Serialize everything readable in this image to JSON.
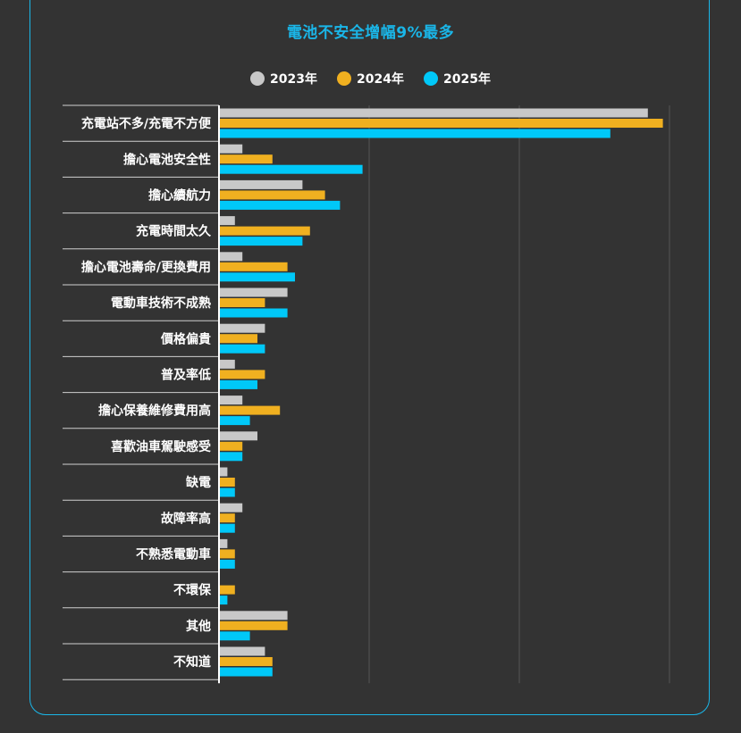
{
  "title": "電池不安全增幅9%最多",
  "colors": {
    "card_border": "#1ab6e8",
    "title": "#1ab6e8",
    "background": "#333333",
    "grid": "#555555",
    "separator": "#d0d0d0"
  },
  "chart_data": {
    "type": "bar",
    "orientation": "horizontal",
    "title": "電池不安全增幅9%最多",
    "xlabel": "",
    "ylabel": "",
    "xlim": [
      0,
      60
    ],
    "grid": true,
    "legend_position": "top-center",
    "categories": [
      "充電站不多/充電不方便",
      "擔心電池安全性",
      "擔心續航力",
      "充電時間太久",
      "擔心電池壽命/更換費用",
      "電動車技術不成熟",
      "價格偏貴",
      "普及率低",
      "擔心保養維修費用高",
      "喜歡油車駕駛感受",
      "缺電",
      "故障率高",
      "不熟悉電動車",
      "不環保",
      "其他",
      "不知道"
    ],
    "series": [
      {
        "name": "2023年",
        "color": "#c8c8c8",
        "values": [
          57,
          3,
          11,
          2,
          3,
          9,
          6,
          2,
          3,
          5,
          1,
          3,
          1,
          0,
          9,
          6
        ]
      },
      {
        "name": "2024年",
        "color": "#f0b020",
        "values": [
          59,
          7,
          14,
          12,
          9,
          6,
          5,
          6,
          8,
          3,
          2,
          2,
          2,
          2,
          9,
          7
        ]
      },
      {
        "name": "2025年",
        "color": "#00c8f8",
        "values": [
          52,
          19,
          16,
          11,
          10,
          9,
          6,
          5,
          4,
          3,
          2,
          2,
          2,
          1,
          4,
          7
        ]
      }
    ]
  }
}
